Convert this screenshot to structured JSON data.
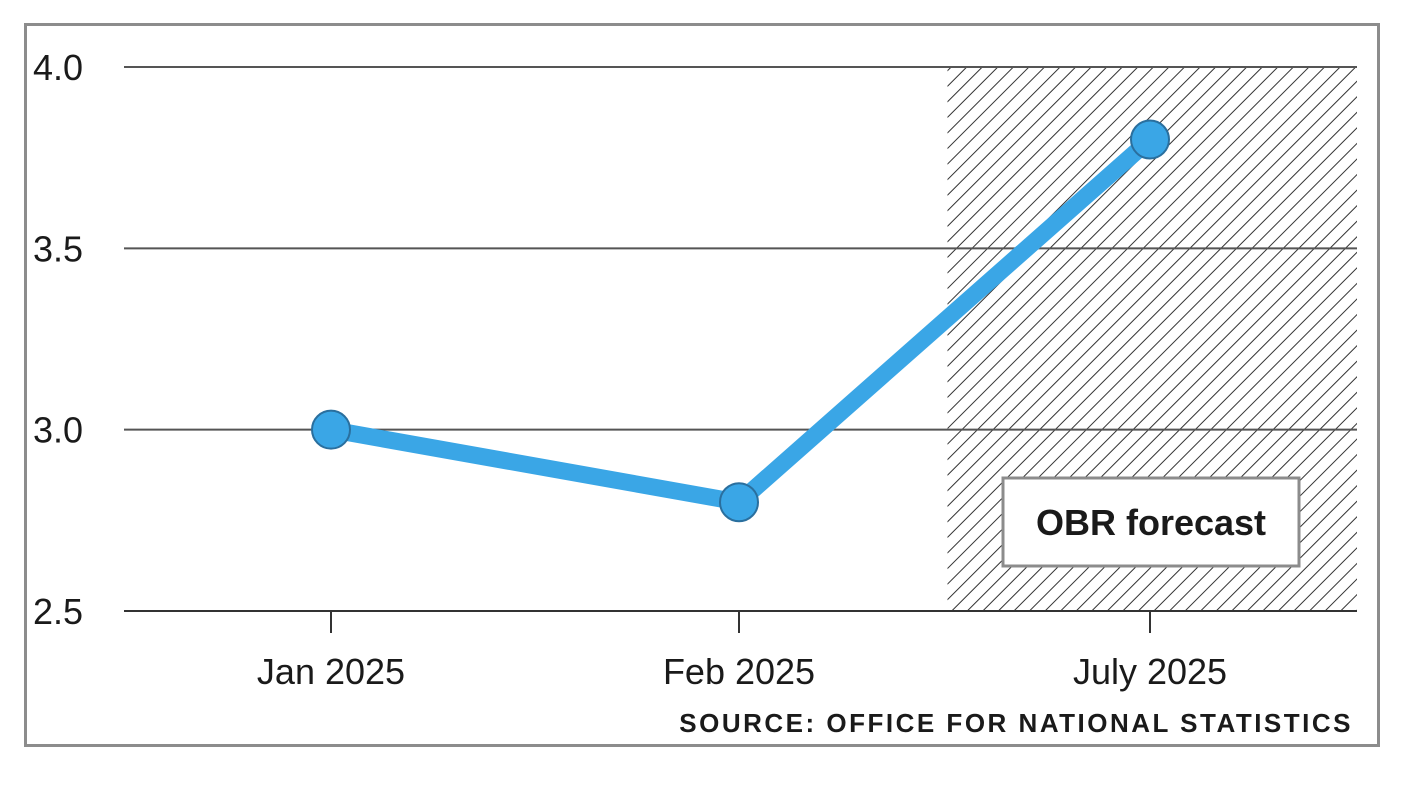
{
  "chart_data": {
    "type": "line",
    "title": "",
    "xlabel": "",
    "ylabel": "",
    "categories": [
      "Jan 2025",
      "Feb 2025",
      "July 2025"
    ],
    "series": [
      {
        "values": [
          3.0,
          2.8,
          3.8
        ],
        "color": "#3aa6e6"
      }
    ],
    "ylim": [
      2.5,
      4.0
    ],
    "y_ticks": [
      "4.0",
      "3.5",
      "3.0",
      "2.5"
    ],
    "y_tick_values": [
      4.0,
      3.5,
      3.0,
      2.5
    ],
    "grid": true,
    "forecast_region": {
      "label": "OBR forecast",
      "from_category": "July 2025",
      "pattern": "diagonal-hatch"
    },
    "source": "SOURCE: OFFICE FOR NATIONAL STATISTICS",
    "colors": {
      "line": "#3aa6e6",
      "marker_outline": "#2a6f9e",
      "grid": "#555555",
      "frame": "#8c8c8c",
      "hatch": "#333333"
    }
  }
}
